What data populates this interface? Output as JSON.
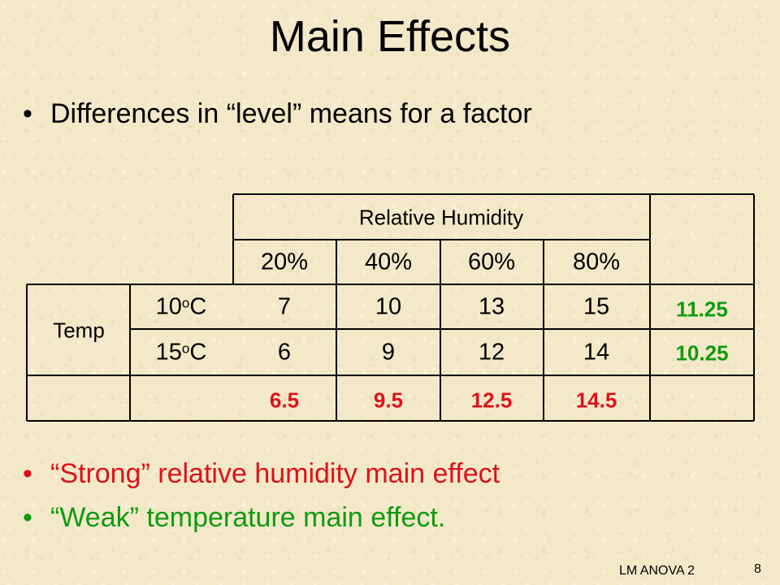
{
  "title": "Main Effects",
  "bullets": [
    "Differences in “level” means for a factor",
    "“Strong” relative humidity main effect",
    "“Weak” temperature main effect."
  ],
  "bullet_glyph": "•",
  "table": {
    "group_header": "Relative  Humidity",
    "columns": [
      "20%",
      "40%",
      "60%",
      "80%"
    ],
    "row_factor": "Temp",
    "rows": [
      {
        "label_num": "10",
        "label_sup": "o",
        "label_unit": "C",
        "values": [
          "7",
          "10",
          "13",
          "15"
        ],
        "row_mean": "11.25"
      },
      {
        "label_num": "15",
        "label_sup": "o",
        "label_unit": "C",
        "values": [
          "6",
          "9",
          "12",
          "14"
        ],
        "row_mean": "10.25"
      }
    ],
    "column_means": [
      "6.5",
      "9.5",
      "12.5",
      "14.5"
    ]
  },
  "footer": "LM ANOVA 2",
  "page_number": "8",
  "colors": {
    "strong": "#e0101a",
    "weak": "#109a10"
  }
}
